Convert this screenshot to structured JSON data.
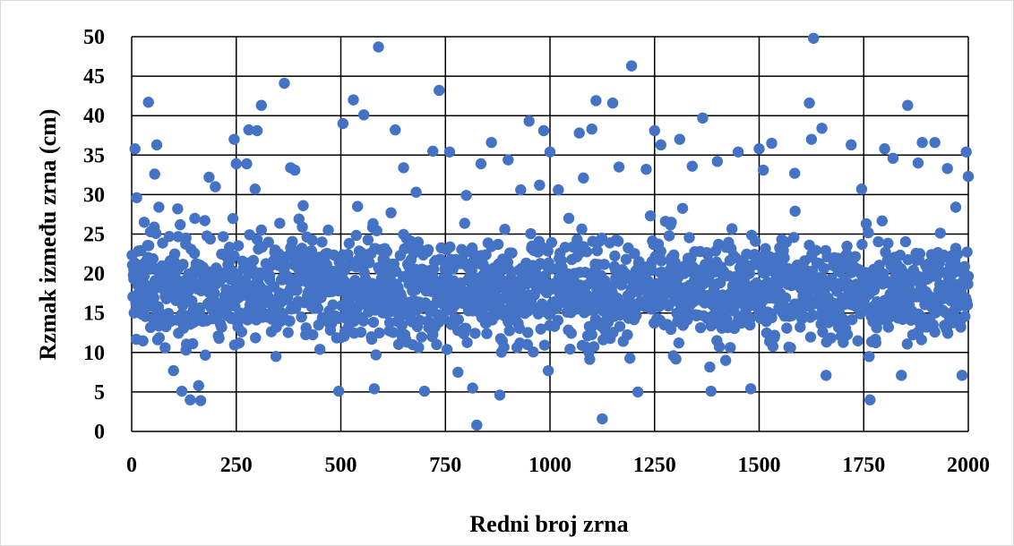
{
  "chart_data": {
    "type": "scatter",
    "title": "",
    "xlabel": "Redni broj zrna",
    "ylabel": "Rzmak između zrna (cm)",
    "xlim": [
      0,
      2000
    ],
    "ylim": [
      0,
      50
    ],
    "xticks": [
      "0",
      "250",
      "500",
      "750",
      "1000",
      "1250",
      "1500",
      "1750",
      "2000"
    ],
    "yticks": [
      "0",
      "5",
      "10",
      "15",
      "20",
      "25",
      "30",
      "35",
      "40",
      "45",
      "50"
    ],
    "grid": true,
    "legend": "none",
    "marker_color": "#4472C4",
    "series": [
      {
        "points_note": "Approximately 2000 seeds (x = 1..2000). Highlighted outliers listed explicitly; the dense cloud between ~10 and ~27 cm is represented by sampled values.",
        "x": [
          5,
          8,
          12,
          20,
          30,
          40,
          45,
          55,
          60,
          65,
          70,
          80,
          90,
          100,
          110,
          120,
          130,
          140,
          150,
          160,
          165,
          175,
          185,
          200,
          215,
          230,
          245,
          250,
          260,
          275,
          280,
          295,
          300,
          310,
          330,
          345,
          365,
          380,
          390,
          400,
          410,
          430,
          450,
          470,
          495,
          505,
          530,
          540,
          555,
          580,
          590,
          620,
          630,
          650,
          680,
          700,
          720,
          735,
          760,
          780,
          800,
          815,
          825,
          835,
          860,
          880,
          900,
          930,
          950,
          975,
          985,
          1000,
          1020,
          1045,
          1070,
          1080,
          1100,
          1110,
          1125,
          1150,
          1165,
          1195,
          1210,
          1230,
          1250,
          1265,
          1290,
          1310,
          1340,
          1365,
          1385,
          1400,
          1420,
          1450,
          1480,
          1500,
          1510,
          1530,
          1560,
          1585,
          1620,
          1625,
          1630,
          1650,
          1660,
          1700,
          1720,
          1745,
          1765,
          1800,
          1820,
          1840,
          1855,
          1880,
          1890,
          1920,
          1950,
          1970,
          1985,
          1995,
          2000
        ],
        "y": [
          20.5,
          35.8,
          29.6,
          16.2,
          26.5,
          41.7,
          25.3,
          32.6,
          36.3,
          28.4,
          18.2,
          10.6,
          24.7,
          7.7,
          28.2,
          5.1,
          24.5,
          4.0,
          20.4,
          5.8,
          3.9,
          26.7,
          32.2,
          31.0,
          13.2,
          22.5,
          37.0,
          33.9,
          19.1,
          33.9,
          38.2,
          30.7,
          38.1,
          41.3,
          19.2,
          9.5,
          44.1,
          33.4,
          33.1,
          26.9,
          28.6,
          20.3,
          10.4,
          25.5,
          5.1,
          39.0,
          42.0,
          28.5,
          40.1,
          5.4,
          48.7,
          27.7,
          38.2,
          33.4,
          30.3,
          5.1,
          35.5,
          43.2,
          35.4,
          7.5,
          29.9,
          5.5,
          0.8,
          33.9,
          36.6,
          4.6,
          34.4,
          30.6,
          39.3,
          31.2,
          38.1,
          35.4,
          30.6,
          27.0,
          37.8,
          32.1,
          38.3,
          41.9,
          1.6,
          41.6,
          33.5,
          46.3,
          5.0,
          33.2,
          38.1,
          36.3,
          26.5,
          37.0,
          33.6,
          39.7,
          5.1,
          34.2,
          9.0,
          35.4,
          5.4,
          35.8,
          33.1,
          36.5,
          20.2,
          32.7,
          41.6,
          37.0,
          49.8,
          38.4,
          7.1,
          20.7,
          36.3,
          30.7,
          4.0,
          35.8,
          34.6,
          7.1,
          41.3,
          34.0,
          36.6,
          36.6,
          33.3,
          28.4,
          7.1,
          35.4,
          32.3
        ]
      }
    ]
  }
}
